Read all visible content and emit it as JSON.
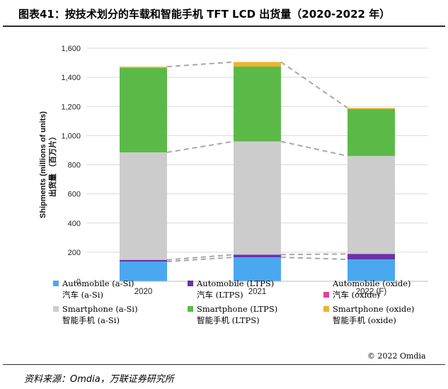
{
  "header": {
    "title": "图表41：按技术划分的车载和智能手机 TFT LCD 出货量（2020-2022 年）"
  },
  "footer": {
    "source": "资料来源：Omdia，万联证券研究所"
  },
  "copyright": "© 2022 Omdia",
  "colors": {
    "auto_asi": "#4aa8f0",
    "auto_ltps": "#6a32a8",
    "auto_oxide": "#e040a0",
    "sp_asi": "#cccccc",
    "sp_ltps": "#5bba47",
    "sp_oxide": "#f0b22a",
    "grid": "#d9d9d9",
    "connector": "#a8a8a8"
  },
  "chart_data": {
    "type": "stacked-bar",
    "categories": [
      "2020",
      "2021",
      "2022 (F)"
    ],
    "series": [
      {
        "key": "auto_asi",
        "name": "Automobile (a-Si)",
        "name_cn": "汽车 (a-Si)",
        "values": [
          135,
          165,
          150
        ]
      },
      {
        "key": "auto_ltps",
        "name": "Automobile (LTPS)",
        "name_cn": "汽车 (LTPS)",
        "values": [
          12,
          18,
          38
        ]
      },
      {
        "key": "auto_oxide",
        "name": "Automobile (oxide)",
        "name_cn": "汽车 (oxide)",
        "values": [
          0,
          0,
          0
        ]
      },
      {
        "key": "sp_asi",
        "name": "Smartphone (a-Si)",
        "name_cn": "智能手机 (a-Si)",
        "values": [
          738,
          777,
          672
        ]
      },
      {
        "key": "sp_ltps",
        "name": "Smartphone (LTPS)",
        "name_cn": "智能手机 (LTPS)",
        "values": [
          580,
          515,
          323
        ]
      },
      {
        "key": "sp_oxide",
        "name": "Smartphone (oxide)",
        "name_cn": "智能手机 (oxide)",
        "values": [
          8,
          30,
          7
        ]
      }
    ],
    "ylim": [
      0,
      1600
    ],
    "yticks": [
      "0",
      "200",
      "400",
      "600",
      "800",
      "1,000",
      "1,200",
      "1,400",
      "1,600"
    ],
    "ylabel": "Shipments (millions of units)",
    "ylabel_cn": "出货量 （百万片）",
    "grid": true,
    "legend_position": "bottom"
  }
}
